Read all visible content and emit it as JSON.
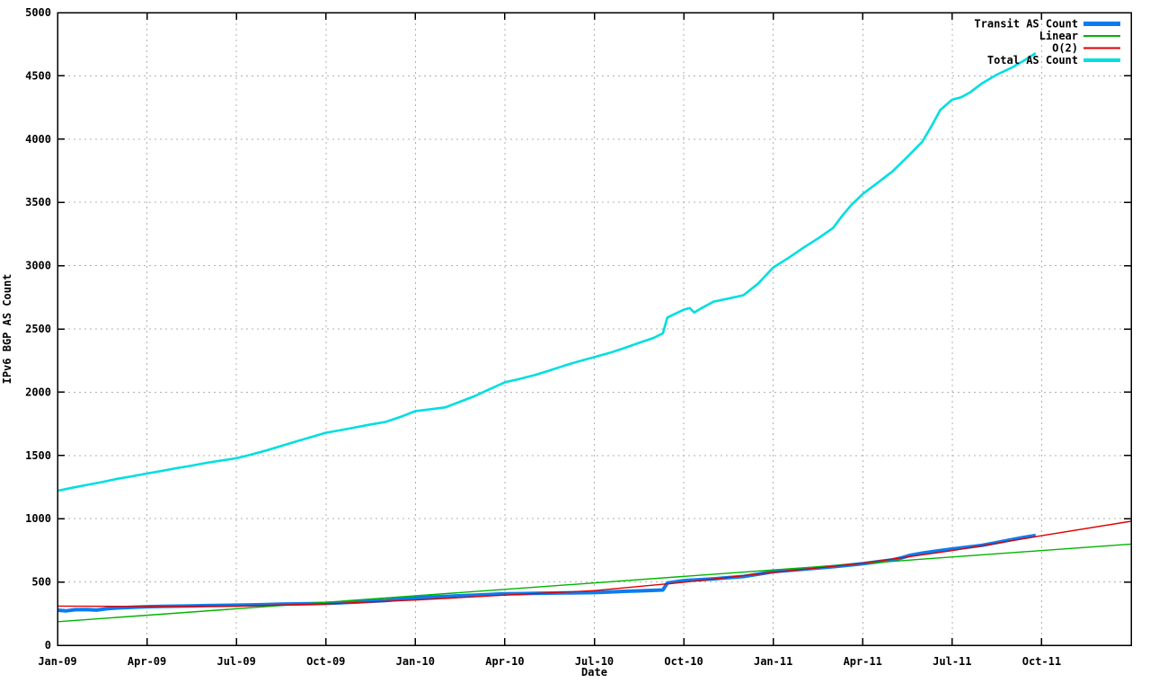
{
  "chart_data": {
    "type": "line",
    "title": "",
    "xlabel": "Date",
    "ylabel": "IPv6 BGP AS Count",
    "grid": true,
    "legend_position": "top-right",
    "x_unit": "months since Jan-2009",
    "x_range_months": [
      0,
      36
    ],
    "x_ticks": [
      {
        "month": 0,
        "label": "Jan-09"
      },
      {
        "month": 3,
        "label": "Apr-09"
      },
      {
        "month": 6,
        "label": "Jul-09"
      },
      {
        "month": 9,
        "label": "Oct-09"
      },
      {
        "month": 12,
        "label": "Jan-10"
      },
      {
        "month": 15,
        "label": "Apr-10"
      },
      {
        "month": 18,
        "label": "Jul-10"
      },
      {
        "month": 21,
        "label": "Oct-10"
      },
      {
        "month": 24,
        "label": "Jan-11"
      },
      {
        "month": 27,
        "label": "Apr-11"
      },
      {
        "month": 30,
        "label": "Jul-11"
      },
      {
        "month": 33,
        "label": "Oct-11"
      }
    ],
    "ylim": [
      0,
      5000
    ],
    "y_ticks": [
      0,
      500,
      1000,
      1500,
      2000,
      2500,
      3000,
      3500,
      4000,
      4500,
      5000
    ],
    "colors": {
      "transit": "#0a7cf0",
      "linear": "#00b400",
      "o2": "#e00000",
      "total": "#00dee0",
      "grid": "#b0b0b0",
      "border": "#000000",
      "text": "#000000",
      "background": "#ffffff"
    },
    "series": [
      {
        "name": "Transit AS Count",
        "color_key": "transit",
        "line_width": 4,
        "legend_sample_width": 5,
        "points": [
          [
            0,
            277
          ],
          [
            0.3,
            272
          ],
          [
            0.6,
            281
          ],
          [
            1,
            283
          ],
          [
            1.3,
            278
          ],
          [
            1.7,
            290
          ],
          [
            2,
            295
          ],
          [
            2.5,
            300
          ],
          [
            3,
            305
          ],
          [
            3.5,
            307
          ],
          [
            4,
            309
          ],
          [
            4.5,
            311
          ],
          [
            5,
            313
          ],
          [
            5.5,
            315
          ],
          [
            6,
            317
          ],
          [
            6.5,
            319
          ],
          [
            7,
            322
          ],
          [
            7.5,
            325
          ],
          [
            8,
            327
          ],
          [
            8.5,
            329
          ],
          [
            9,
            331
          ],
          [
            9.5,
            336
          ],
          [
            10,
            341
          ],
          [
            10.5,
            347
          ],
          [
            11,
            354
          ],
          [
            11.5,
            364
          ],
          [
            12,
            376
          ],
          [
            12.5,
            381
          ],
          [
            13,
            386
          ],
          [
            13.5,
            391
          ],
          [
            14,
            396
          ],
          [
            14.5,
            401
          ],
          [
            15,
            406
          ],
          [
            15.5,
            408
          ],
          [
            16,
            410
          ],
          [
            16.5,
            412
          ],
          [
            17,
            413
          ],
          [
            17.5,
            415
          ],
          [
            18,
            416
          ],
          [
            18.5,
            421
          ],
          [
            19,
            426
          ],
          [
            19.5,
            430
          ],
          [
            20,
            434
          ],
          [
            20.3,
            437
          ],
          [
            20.45,
            492
          ],
          [
            21,
            511
          ],
          [
            21.5,
            518
          ],
          [
            22,
            525
          ],
          [
            22.5,
            534
          ],
          [
            23,
            543
          ],
          [
            23.5,
            562
          ],
          [
            24,
            582
          ],
          [
            24.5,
            591
          ],
          [
            25,
            601
          ],
          [
            25.5,
            611
          ],
          [
            26,
            621
          ],
          [
            26.5,
            632
          ],
          [
            27,
            645
          ],
          [
            27.5,
            660
          ],
          [
            28,
            675
          ],
          [
            28.3,
            690
          ],
          [
            28.6,
            712
          ],
          [
            29,
            728
          ],
          [
            29.5,
            745
          ],
          [
            30,
            761
          ],
          [
            30.5,
            775
          ],
          [
            31,
            790
          ],
          [
            31.5,
            812
          ],
          [
            32,
            835
          ],
          [
            32.4,
            852
          ],
          [
            32.8,
            867
          ]
        ]
      },
      {
        "name": "Linear",
        "color_key": "linear",
        "line_width": 1.4,
        "legend_sample_width": 2,
        "points": [
          [
            0,
            186
          ],
          [
            36,
            800
          ]
        ]
      },
      {
        "name": "O(2)",
        "color_key": "o2",
        "line_width": 1.4,
        "legend_sample_width": 2,
        "points": [
          [
            0,
            310
          ],
          [
            3,
            306
          ],
          [
            6,
            310
          ],
          [
            9,
            327
          ],
          [
            12,
            357
          ],
          [
            15,
            396
          ],
          [
            18,
            432
          ],
          [
            21,
            498
          ],
          [
            24,
            576
          ],
          [
            27,
            648
          ],
          [
            30,
            748
          ],
          [
            33,
            866
          ],
          [
            36,
            980
          ]
        ]
      },
      {
        "name": "Total AS Count",
        "color_key": "total",
        "line_width": 2.6,
        "legend_sample_width": 4,
        "points": [
          [
            0,
            1221
          ],
          [
            0.5,
            1245
          ],
          [
            1,
            1268
          ],
          [
            1.5,
            1290
          ],
          [
            2,
            1315
          ],
          [
            2.5,
            1335
          ],
          [
            3,
            1357
          ],
          [
            3.5,
            1378
          ],
          [
            4,
            1400
          ],
          [
            4.5,
            1420
          ],
          [
            5,
            1442
          ],
          [
            5.5,
            1460
          ],
          [
            6,
            1478
          ],
          [
            6.5,
            1508
          ],
          [
            7,
            1540
          ],
          [
            7.5,
            1575
          ],
          [
            8,
            1610
          ],
          [
            8.5,
            1645
          ],
          [
            9,
            1680
          ],
          [
            9.5,
            1700
          ],
          [
            10,
            1722
          ],
          [
            10.5,
            1745
          ],
          [
            11,
            1765
          ],
          [
            11.5,
            1805
          ],
          [
            12,
            1851
          ],
          [
            12.5,
            1865
          ],
          [
            13,
            1880
          ],
          [
            13.5,
            1925
          ],
          [
            14,
            1970
          ],
          [
            14.5,
            2025
          ],
          [
            15,
            2078
          ],
          [
            15.5,
            2105
          ],
          [
            16,
            2135
          ],
          [
            16.5,
            2172
          ],
          [
            17,
            2210
          ],
          [
            17.5,
            2245
          ],
          [
            18,
            2277
          ],
          [
            18.5,
            2310
          ],
          [
            19,
            2348
          ],
          [
            19.5,
            2390
          ],
          [
            20,
            2430
          ],
          [
            20.3,
            2465
          ],
          [
            20.45,
            2590
          ],
          [
            21,
            2652
          ],
          [
            21.2,
            2665
          ],
          [
            21.35,
            2630
          ],
          [
            21.6,
            2665
          ],
          [
            22,
            2716
          ],
          [
            22.5,
            2740
          ],
          [
            23,
            2766
          ],
          [
            23.5,
            2860
          ],
          [
            24,
            2986
          ],
          [
            24.5,
            3060
          ],
          [
            25,
            3140
          ],
          [
            25.5,
            3215
          ],
          [
            26,
            3297
          ],
          [
            26.3,
            3390
          ],
          [
            26.6,
            3475
          ],
          [
            27,
            3567
          ],
          [
            27.5,
            3655
          ],
          [
            28,
            3745
          ],
          [
            28.5,
            3860
          ],
          [
            29,
            3980
          ],
          [
            29.3,
            4100
          ],
          [
            29.6,
            4230
          ],
          [
            30,
            4312
          ],
          [
            30.3,
            4330
          ],
          [
            30.6,
            4370
          ],
          [
            31,
            4440
          ],
          [
            31.5,
            4510
          ],
          [
            32,
            4565
          ],
          [
            32.4,
            4620
          ],
          [
            32.8,
            4680
          ]
        ]
      }
    ]
  },
  "layout_note_visible_text_only": {
    "date_axis_title": "Date",
    "value_axis_title": "IPv6 BGP AS Count",
    "legend_entries": [
      "Transit AS Count",
      "Linear",
      "O(2)",
      "Total AS Count"
    ]
  }
}
